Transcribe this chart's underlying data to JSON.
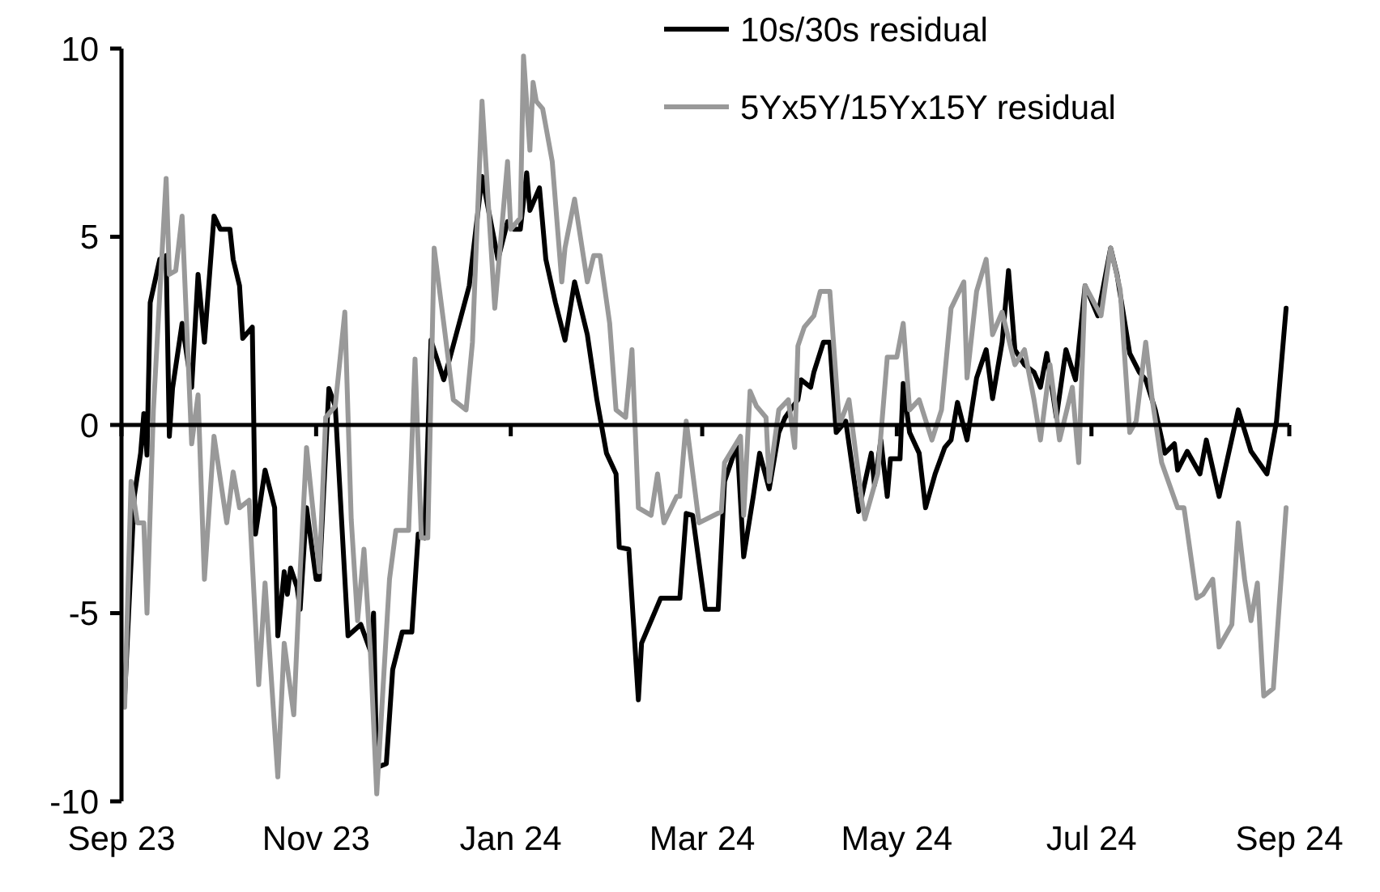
{
  "chart_data": {
    "type": "line",
    "xlim": [
      "2023-09-01",
      "2024-09-01"
    ],
    "ylim": [
      -10,
      10
    ],
    "yticks": [
      -10,
      -5,
      0,
      5,
      10
    ],
    "xticks": [
      {
        "value": "2023-09-01",
        "label": "Sep 23"
      },
      {
        "value": "2023-11-01",
        "label": "Nov 23"
      },
      {
        "value": "2024-01-01",
        "label": "Jan 24"
      },
      {
        "value": "2024-03-01",
        "label": "Mar 24"
      },
      {
        "value": "2024-05-01",
        "label": "May 24"
      },
      {
        "value": "2024-07-01",
        "label": "Jul 24"
      },
      {
        "value": "2024-09-01",
        "label": "Sep 24"
      }
    ],
    "legend": "top right",
    "marker": "none",
    "line_style": "solid",
    "series": [
      {
        "name": "10s/30s residual",
        "color": "#000000",
        "x": [
          "2023-09-02",
          "2023-09-05",
          "2023-09-07",
          "2023-09-08",
          "2023-09-09",
          "2023-09-10",
          "2023-09-13",
          "2023-09-15",
          "2023-09-16",
          "2023-09-17",
          "2023-09-20",
          "2023-09-23",
          "2023-09-25",
          "2023-09-27",
          "2023-09-30",
          "2023-10-02",
          "2023-10-05",
          "2023-10-06",
          "2023-10-08",
          "2023-10-09",
          "2023-10-12",
          "2023-10-13",
          "2023-10-16",
          "2023-10-19",
          "2023-10-20",
          "2023-10-22",
          "2023-10-23",
          "2023-10-24",
          "2023-10-26",
          "2023-10-27",
          "2023-10-29",
          "2023-11-01",
          "2023-11-02",
          "2023-11-05",
          "2023-11-07",
          "2023-11-11",
          "2023-11-15",
          "2023-11-18",
          "2023-11-19",
          "2023-11-20",
          "2023-11-23",
          "2023-11-25",
          "2023-11-28",
          "2023-12-01",
          "2023-12-03",
          "2023-12-05",
          "2023-12-07",
          "2023-12-11",
          "2023-12-13",
          "2023-12-19",
          "2023-12-23",
          "2023-12-28",
          "2023-12-31",
          "2024-01-02",
          "2024-01-04",
          "2024-01-06",
          "2024-01-07",
          "2024-01-10",
          "2024-01-12",
          "2024-01-15",
          "2024-01-18",
          "2024-01-21",
          "2024-01-25",
          "2024-01-28",
          "2024-01-31",
          "2024-02-03",
          "2024-02-04",
          "2024-02-07",
          "2024-02-10",
          "2024-02-11",
          "2024-02-17",
          "2024-02-23",
          "2024-02-25",
          "2024-02-27",
          "2024-03-02",
          "2024-03-06",
          "2024-03-08",
          "2024-03-12",
          "2024-03-14",
          "2024-03-17",
          "2024-03-19",
          "2024-03-22",
          "2024-03-25",
          "2024-03-27",
          "2024-03-31",
          "2024-04-01",
          "2024-04-04",
          "2024-04-05",
          "2024-04-08",
          "2024-04-10",
          "2024-04-12",
          "2024-04-15",
          "2024-04-19",
          "2024-04-23",
          "2024-04-24",
          "2024-04-26",
          "2024-04-28",
          "2024-04-29",
          "2024-05-02",
          "2024-05-03",
          "2024-05-05",
          "2024-05-08",
          "2024-05-10",
          "2024-05-13",
          "2024-05-16",
          "2024-05-18",
          "2024-05-20",
          "2024-05-23",
          "2024-05-26",
          "2024-05-29",
          "2024-05-31",
          "2024-06-03",
          "2024-06-05",
          "2024-06-07",
          "2024-06-10",
          "2024-06-13",
          "2024-06-15",
          "2024-06-17",
          "2024-06-20",
          "2024-06-23",
          "2024-06-26",
          "2024-06-29",
          "2024-07-03",
          "2024-07-07",
          "2024-07-09",
          "2024-07-13",
          "2024-07-16",
          "2024-07-18",
          "2024-07-21",
          "2024-07-24",
          "2024-07-27",
          "2024-07-28",
          "2024-07-31",
          "2024-08-04",
          "2024-08-06",
          "2024-08-10",
          "2024-08-16",
          "2024-08-20",
          "2024-08-25",
          "2024-08-28",
          "2024-08-31"
        ],
        "values": [
          -7.2,
          -1.9,
          -0.75,
          0.3,
          -0.8,
          3.25,
          4.4,
          4.5,
          -0.3,
          0.97,
          2.7,
          1.0,
          4.0,
          2.2,
          5.55,
          5.2,
          5.2,
          4.4,
          3.7,
          2.3,
          2.6,
          -2.9,
          -1.2,
          -2.2,
          -5.6,
          -3.9,
          -4.5,
          -3.8,
          -4.3,
          -4.9,
          -2.2,
          -4.1,
          -4.1,
          0.97,
          0.5,
          -5.6,
          -5.3,
          -6.0,
          -5.0,
          -9.1,
          -9.0,
          -6.5,
          -5.5,
          -5.5,
          -2.9,
          -3.0,
          2.25,
          1.2,
          1.8,
          3.7,
          6.6,
          4.4,
          5.4,
          5.2,
          5.2,
          6.7,
          5.7,
          6.3,
          4.4,
          3.25,
          2.25,
          3.8,
          2.4,
          0.67,
          -0.75,
          -1.3,
          -3.25,
          -3.3,
          -7.3,
          -5.8,
          -4.6,
          -4.6,
          -2.35,
          -2.4,
          -4.9,
          -4.9,
          -1.5,
          -0.5,
          -3.5,
          -1.9,
          -0.75,
          -1.7,
          -0.2,
          0.2,
          0.67,
          1.2,
          1.0,
          1.4,
          2.2,
          2.2,
          -0.2,
          0.1,
          -2.3,
          -0.75,
          -1.6,
          -0.4,
          -1.9,
          -0.9,
          -0.9,
          1.1,
          -0.2,
          -0.75,
          -2.2,
          -1.3,
          -0.6,
          -0.4,
          0.6,
          -0.4,
          1.25,
          2.0,
          0.7,
          2.2,
          4.1,
          2.0,
          1.6,
          1.4,
          1.0,
          1.9,
          0.2,
          2.0,
          1.2,
          3.7,
          2.9,
          4.7,
          4.0,
          1.9,
          1.4,
          1.2,
          0.4,
          -0.75,
          -0.5,
          -1.2,
          -0.7,
          -1.3,
          -0.4,
          -1.9,
          0.4,
          -0.7,
          -1.3,
          0.1,
          3.1
        ]
      },
      {
        "name": "5Yx5Y/15Yx15Y residual",
        "color": "#999999",
        "x": [
          "2023-09-02",
          "2023-09-04",
          "2023-09-06",
          "2023-09-08",
          "2023-09-09",
          "2023-09-11",
          "2023-09-15",
          "2023-09-16",
          "2023-09-18",
          "2023-09-20",
          "2023-09-23",
          "2023-09-25",
          "2023-09-27",
          "2023-09-30",
          "2023-10-04",
          "2023-10-06",
          "2023-10-08",
          "2023-10-11",
          "2023-10-14",
          "2023-10-16",
          "2023-10-20",
          "2023-10-22",
          "2023-10-25",
          "2023-10-27",
          "2023-10-29",
          "2023-11-02",
          "2023-11-04",
          "2023-11-07",
          "2023-11-10",
          "2023-11-12",
          "2023-11-14",
          "2023-11-16",
          "2023-11-18",
          "2023-11-20",
          "2023-11-24",
          "2023-11-26",
          "2023-11-30",
          "2023-12-02",
          "2023-12-04",
          "2023-12-06",
          "2023-12-08",
          "2023-12-11",
          "2023-12-14",
          "2023-12-18",
          "2023-12-20",
          "2023-12-23",
          "2023-12-27",
          "2023-12-31",
          "2024-01-01",
          "2024-01-04",
          "2024-01-05",
          "2024-01-07",
          "2024-01-08",
          "2024-01-09",
          "2024-01-11",
          "2024-01-14",
          "2024-01-17",
          "2024-01-18",
          "2024-01-21",
          "2024-01-25",
          "2024-01-27",
          "2024-01-29",
          "2024-02-01",
          "2024-02-03",
          "2024-02-06",
          "2024-02-08",
          "2024-02-10",
          "2024-02-14",
          "2024-02-16",
          "2024-02-18",
          "2024-02-22",
          "2024-02-23",
          "2024-02-25",
          "2024-02-29",
          "2024-03-07",
          "2024-03-08",
          "2024-03-13",
          "2024-03-14",
          "2024-03-16",
          "2024-03-18",
          "2024-03-21",
          "2024-03-22",
          "2024-03-25",
          "2024-03-28",
          "2024-03-30",
          "2024-03-31",
          "2024-04-02",
          "2024-04-05",
          "2024-04-07",
          "2024-04-10",
          "2024-04-13",
          "2024-04-16",
          "2024-04-20",
          "2024-04-21",
          "2024-04-25",
          "2024-04-28",
          "2024-05-01",
          "2024-05-03",
          "2024-05-05",
          "2024-05-08",
          "2024-05-12",
          "2024-05-15",
          "2024-05-18",
          "2024-05-22",
          "2024-05-23",
          "2024-05-26",
          "2024-05-29",
          "2024-05-31",
          "2024-06-03",
          "2024-06-07",
          "2024-06-10",
          "2024-06-13",
          "2024-06-15",
          "2024-06-18",
          "2024-06-21",
          "2024-06-25",
          "2024-06-27",
          "2024-06-29",
          "2024-07-04",
          "2024-07-07",
          "2024-07-10",
          "2024-07-13",
          "2024-07-15",
          "2024-07-18",
          "2024-07-20",
          "2024-07-23",
          "2024-07-28",
          "2024-07-30",
          "2024-08-03",
          "2024-08-05",
          "2024-08-08",
          "2024-08-10",
          "2024-08-14",
          "2024-08-16",
          "2024-08-18",
          "2024-08-20",
          "2024-08-22",
          "2024-08-24",
          "2024-08-27",
          "2024-08-31"
        ],
        "values": [
          -7.5,
          -1.5,
          -2.6,
          -2.6,
          -5.0,
          0.4,
          6.55,
          4.0,
          4.1,
          5.55,
          -0.5,
          0.8,
          -4.1,
          -0.3,
          -2.6,
          -1.25,
          -2.2,
          -2.0,
          -6.9,
          -4.2,
          -9.35,
          -5.8,
          -7.7,
          -3.9,
          -0.6,
          -3.9,
          0.2,
          0.5,
          3.0,
          -2.5,
          -5.2,
          -3.3,
          -6.0,
          -9.8,
          -4.1,
          -2.8,
          -2.8,
          1.75,
          -3.0,
          -3.0,
          4.7,
          2.7,
          0.67,
          0.4,
          2.2,
          8.6,
          3.1,
          7.0,
          5.2,
          5.5,
          9.8,
          7.3,
          9.1,
          8.6,
          8.4,
          7.0,
          3.8,
          4.7,
          6.0,
          3.8,
          4.5,
          4.5,
          2.7,
          0.4,
          0.2,
          2.0,
          -2.2,
          -2.4,
          -1.3,
          -2.6,
          -1.9,
          -1.9,
          0.1,
          -2.6,
          -2.3,
          -1.0,
          -0.3,
          -2.4,
          0.9,
          0.5,
          0.2,
          -1.5,
          0.4,
          0.67,
          -0.6,
          2.1,
          2.6,
          2.9,
          3.55,
          3.55,
          0,
          0.67,
          -2.0,
          -2.5,
          -1.3,
          1.8,
          1.8,
          2.7,
          0.4,
          0.67,
          -0.4,
          0.4,
          3.1,
          3.8,
          1.25,
          3.55,
          4.4,
          2.4,
          3.0,
          1.6,
          2.0,
          0.67,
          -0.4,
          1.6,
          -0.4,
          1.0,
          -1.0,
          3.7,
          2.9,
          4.7,
          3.6,
          -0.2,
          0.1,
          2.2,
          0.7,
          -1.0,
          -2.2,
          -2.2,
          -4.6,
          -4.5,
          -4.1,
          -5.9,
          -5.3,
          -2.6,
          -4.1,
          -5.2,
          -4.2,
          -7.2,
          -7.0,
          -2.2
        ]
      }
    ]
  }
}
